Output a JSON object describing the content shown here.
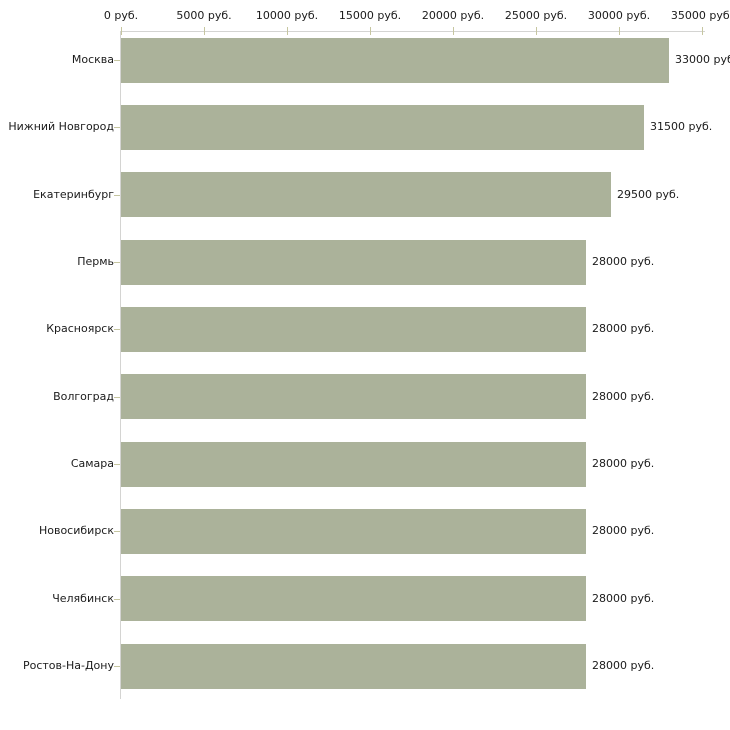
{
  "chart_data": {
    "type": "bar",
    "orientation": "horizontal",
    "title": "",
    "categories": [
      "Москва",
      "Нижний Новгород",
      "Екатеринбург",
      "Пермь",
      "Красноярск",
      "Волгоград",
      "Самара",
      "Новосибирск",
      "Челябинск",
      "Ростов-На-Дону"
    ],
    "values": [
      33000,
      31500,
      29500,
      28000,
      28000,
      28000,
      28000,
      28000,
      28000,
      28000
    ],
    "value_labels": [
      "33000 руб",
      "31500 руб.",
      "29500 руб.",
      "28000 руб.",
      "28000 руб.",
      "28000 руб.",
      "28000 руб.",
      "28000 руб.",
      "28000 руб.",
      "28000 руб."
    ],
    "x_axis": {
      "position": "top",
      "xlim": [
        0,
        35000
      ],
      "tick_values": [
        0,
        5000,
        10000,
        15000,
        20000,
        25000,
        30000,
        35000
      ],
      "tick_labels": [
        "0 руб.",
        "5000 руб.",
        "10000 руб.",
        "15000 руб.",
        "20000 руб.",
        "25000 руб.",
        "30000 руб.",
        "35000 руб."
      ]
    },
    "ylabel": "",
    "xlabel": "",
    "legend_position": "none",
    "grid": false,
    "colors": {
      "bar": "#abb29a",
      "axis_line": "#d4d4d2",
      "tick_mark": "#c6c6a0",
      "text": "#1b1b1b"
    }
  }
}
